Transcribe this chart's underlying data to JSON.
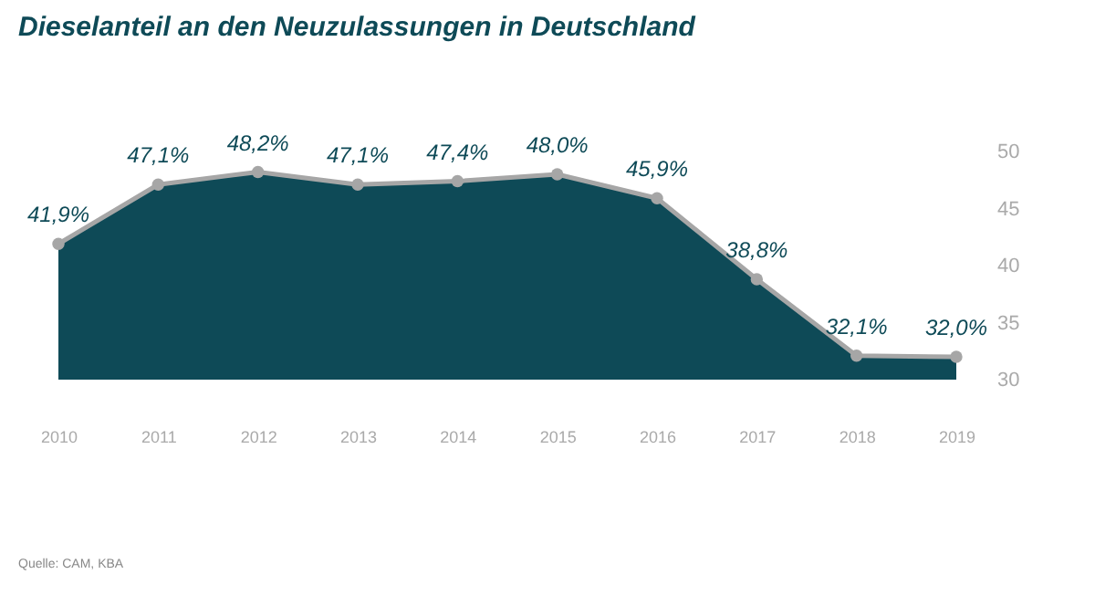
{
  "chart_data": {
    "type": "area",
    "title": "Dieselanteil an den Neuzulassungen in Deutschland",
    "categories": [
      "2010",
      "2011",
      "2012",
      "2013",
      "2014",
      "2015",
      "2016",
      "2017",
      "2018",
      "2019"
    ],
    "series": [
      {
        "color": "#0e4a57",
        "values": [
          41.9,
          47.1,
          48.2,
          47.1,
          47.4,
          48.0,
          45.9,
          38.8,
          32.1,
          32.0
        ],
        "value_labels": [
          "41,9%",
          "47,1%",
          "48,2%",
          "47,1%",
          "47,4%",
          "48,0%",
          "45,9%",
          "38,8%",
          "32,1%",
          "32,0%"
        ]
      }
    ],
    "ylim": [
      30,
      50
    ],
    "yticks": [
      30,
      35,
      40,
      45,
      50
    ],
    "marker": "circle",
    "line_style": "solid",
    "annotations": [
      "Quelle: CAM, KBA"
    ]
  }
}
